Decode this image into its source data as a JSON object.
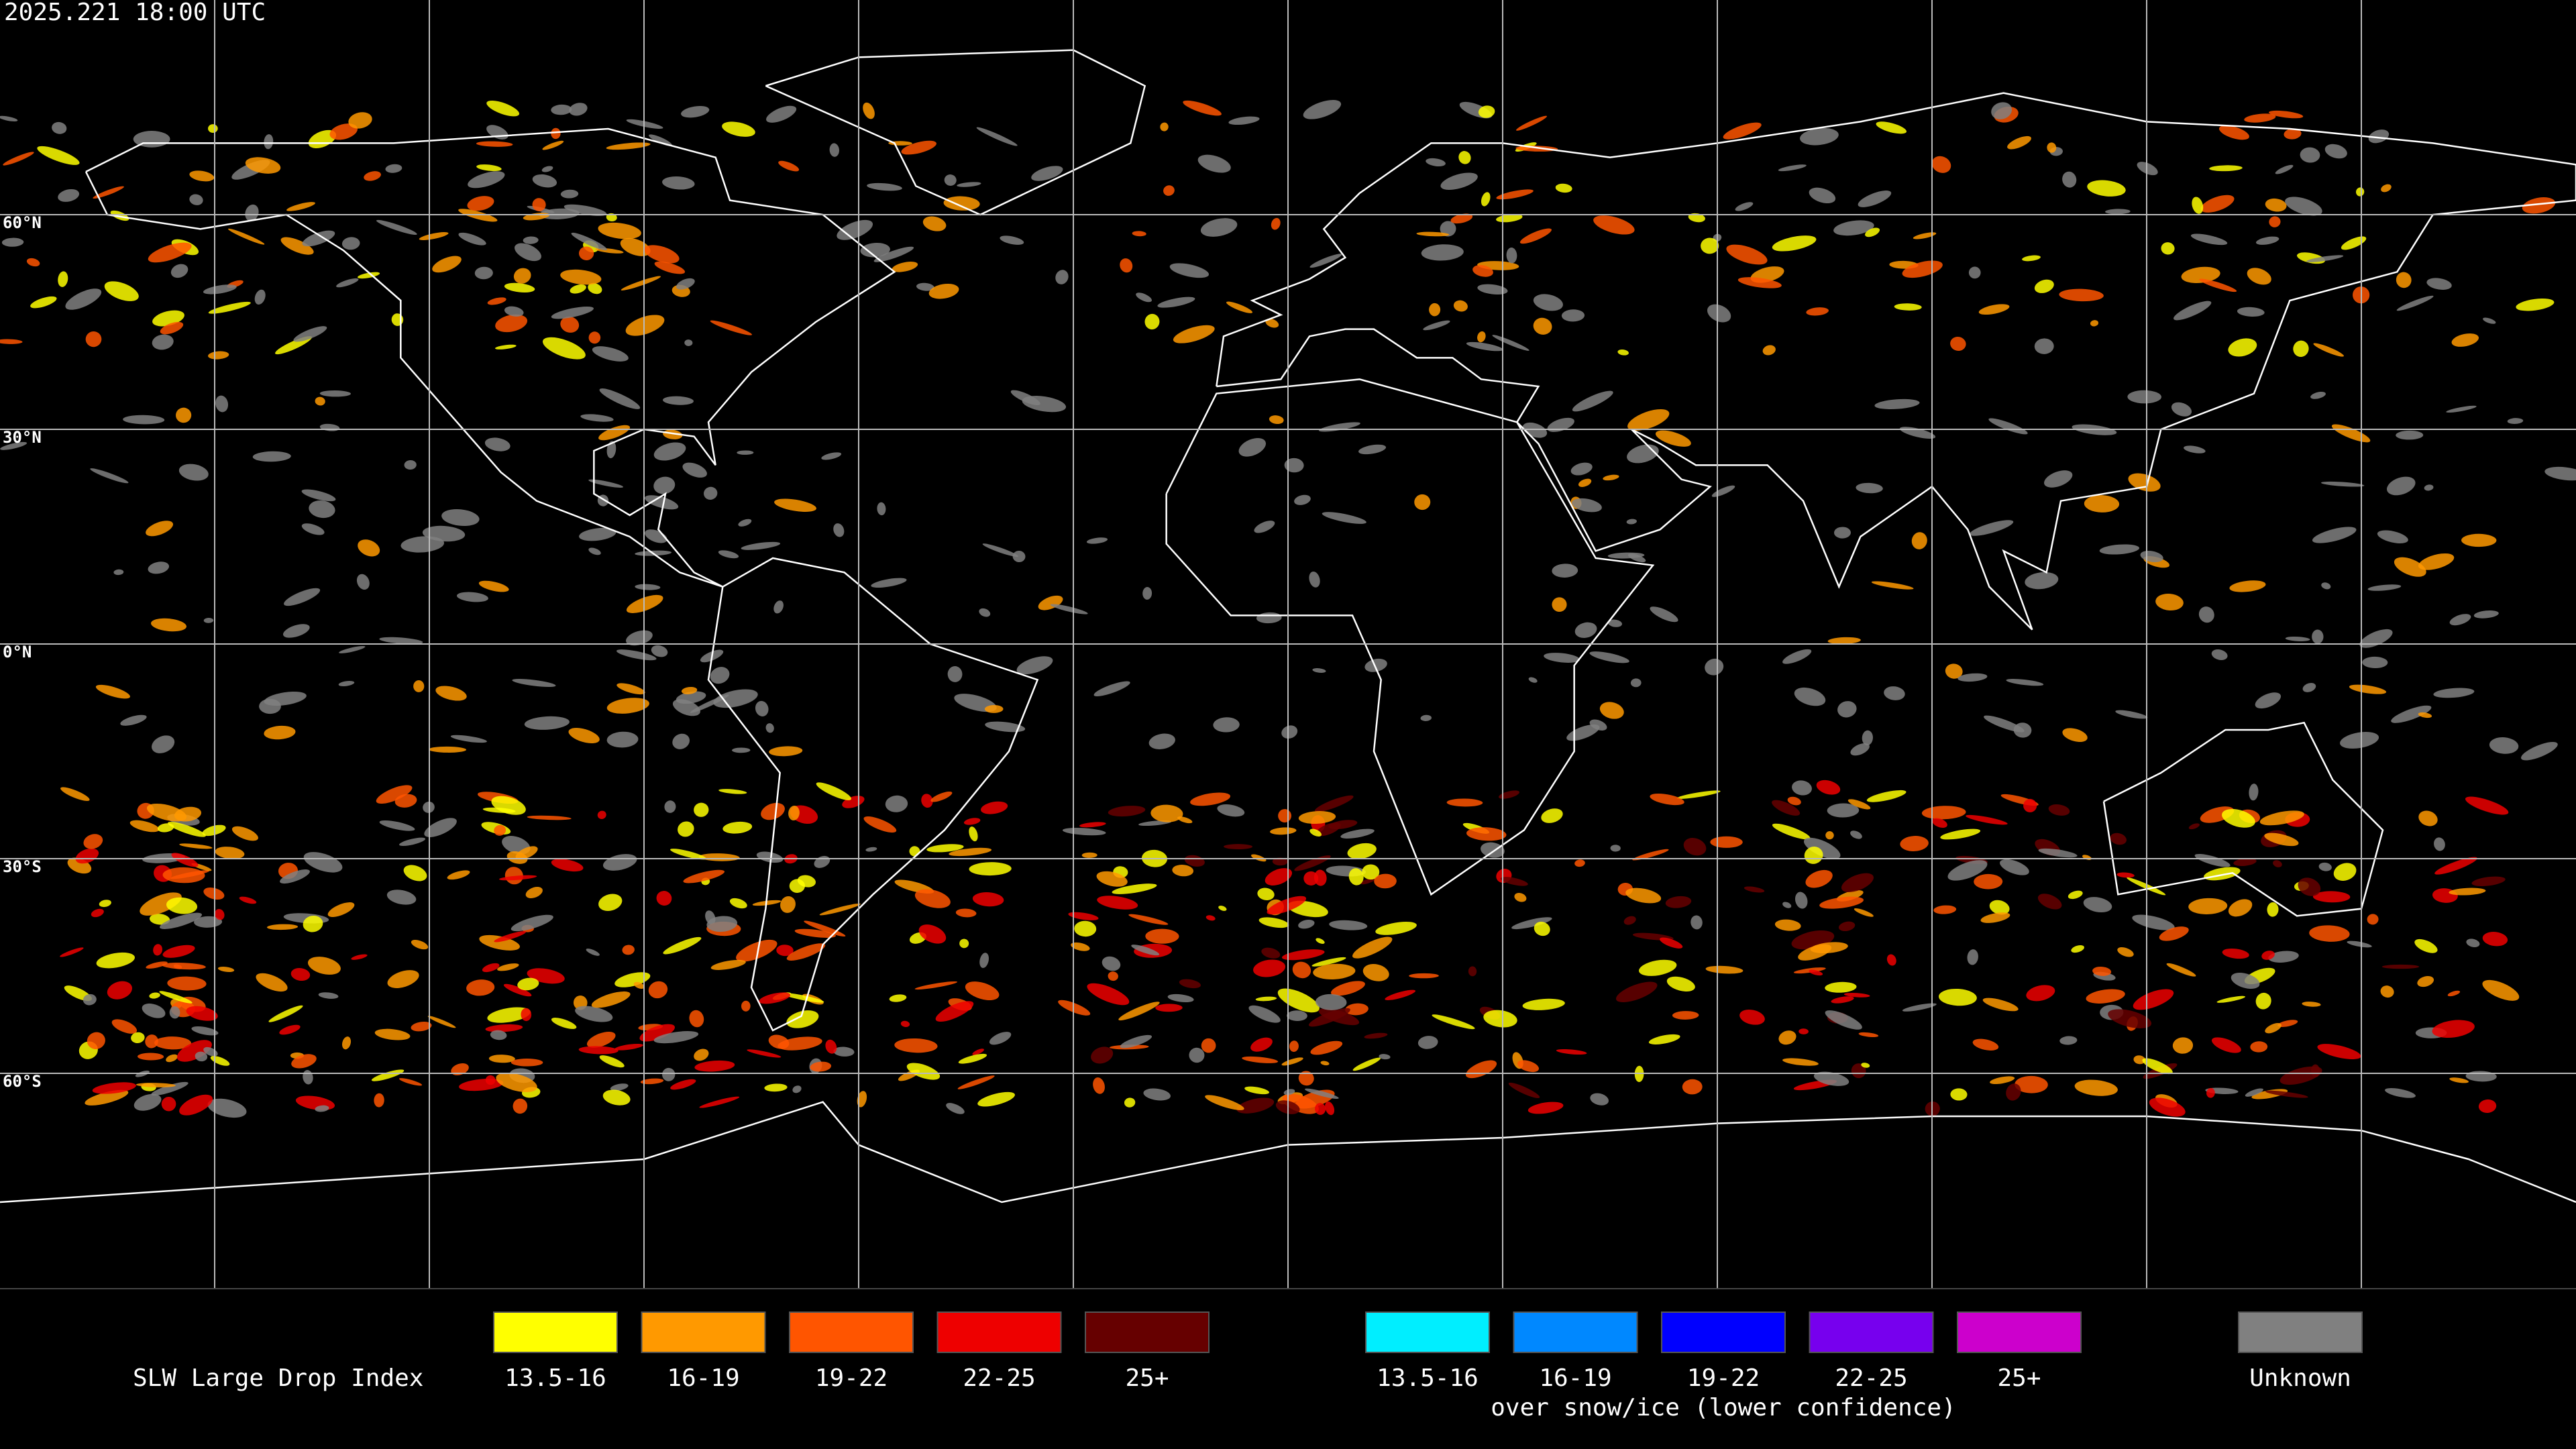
{
  "header": {
    "timestamp": "2025.221 18:00 UTC"
  },
  "map": {
    "lat_labels": [
      "60°N",
      "30°N",
      "0°N",
      "30°S",
      "60°S"
    ]
  },
  "legend": {
    "title": "SLW Large Drop Index",
    "groups": [
      {
        "items": [
          {
            "label": "13.5-16",
            "color": "#ffff00"
          },
          {
            "label": "16-19",
            "color": "#ff9900"
          },
          {
            "label": "19-22",
            "color": "#ff5500"
          },
          {
            "label": "22-25",
            "color": "#ee0000"
          },
          {
            "label": "25+",
            "color": "#660000"
          }
        ]
      },
      {
        "caption": "over snow/ice (lower confidence)",
        "items": [
          {
            "label": "13.5-16",
            "color": "#00eeff"
          },
          {
            "label": "16-19",
            "color": "#0088ff"
          },
          {
            "label": "19-22",
            "color": "#0000ff"
          },
          {
            "label": "22-25",
            "color": "#7700ee"
          },
          {
            "label": "25+",
            "color": "#cc00cc"
          }
        ]
      },
      {
        "items": [
          {
            "label": "Unknown",
            "color": "#808080"
          }
        ]
      }
    ]
  }
}
